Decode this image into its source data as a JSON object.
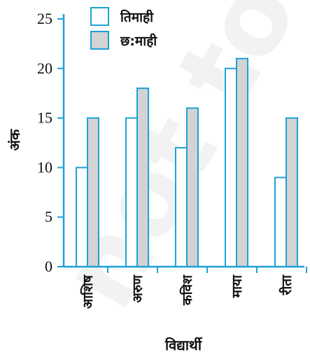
{
  "chart_data": {
    "type": "bar",
    "categories": [
      "आशिष",
      "अरुण",
      "कविश",
      "माया",
      "रीता"
    ],
    "series": [
      {
        "name": "तिमाही",
        "values": [
          10,
          15,
          12,
          20,
          9
        ],
        "color": "#ffffff"
      },
      {
        "name": "छ:माही",
        "values": [
          15,
          18,
          16,
          21,
          15
        ],
        "color": "#d3d3d3"
      }
    ],
    "xlabel": "विद्यार्थी",
    "ylabel": "अंक",
    "ylim": [
      0,
      25
    ],
    "yticks": [
      "0",
      "5",
      "10",
      "15",
      "20",
      "25"
    ],
    "bar_edge_color": "#1ea1d6",
    "grid": false,
    "legend_position": "top",
    "watermark": "not to"
  }
}
